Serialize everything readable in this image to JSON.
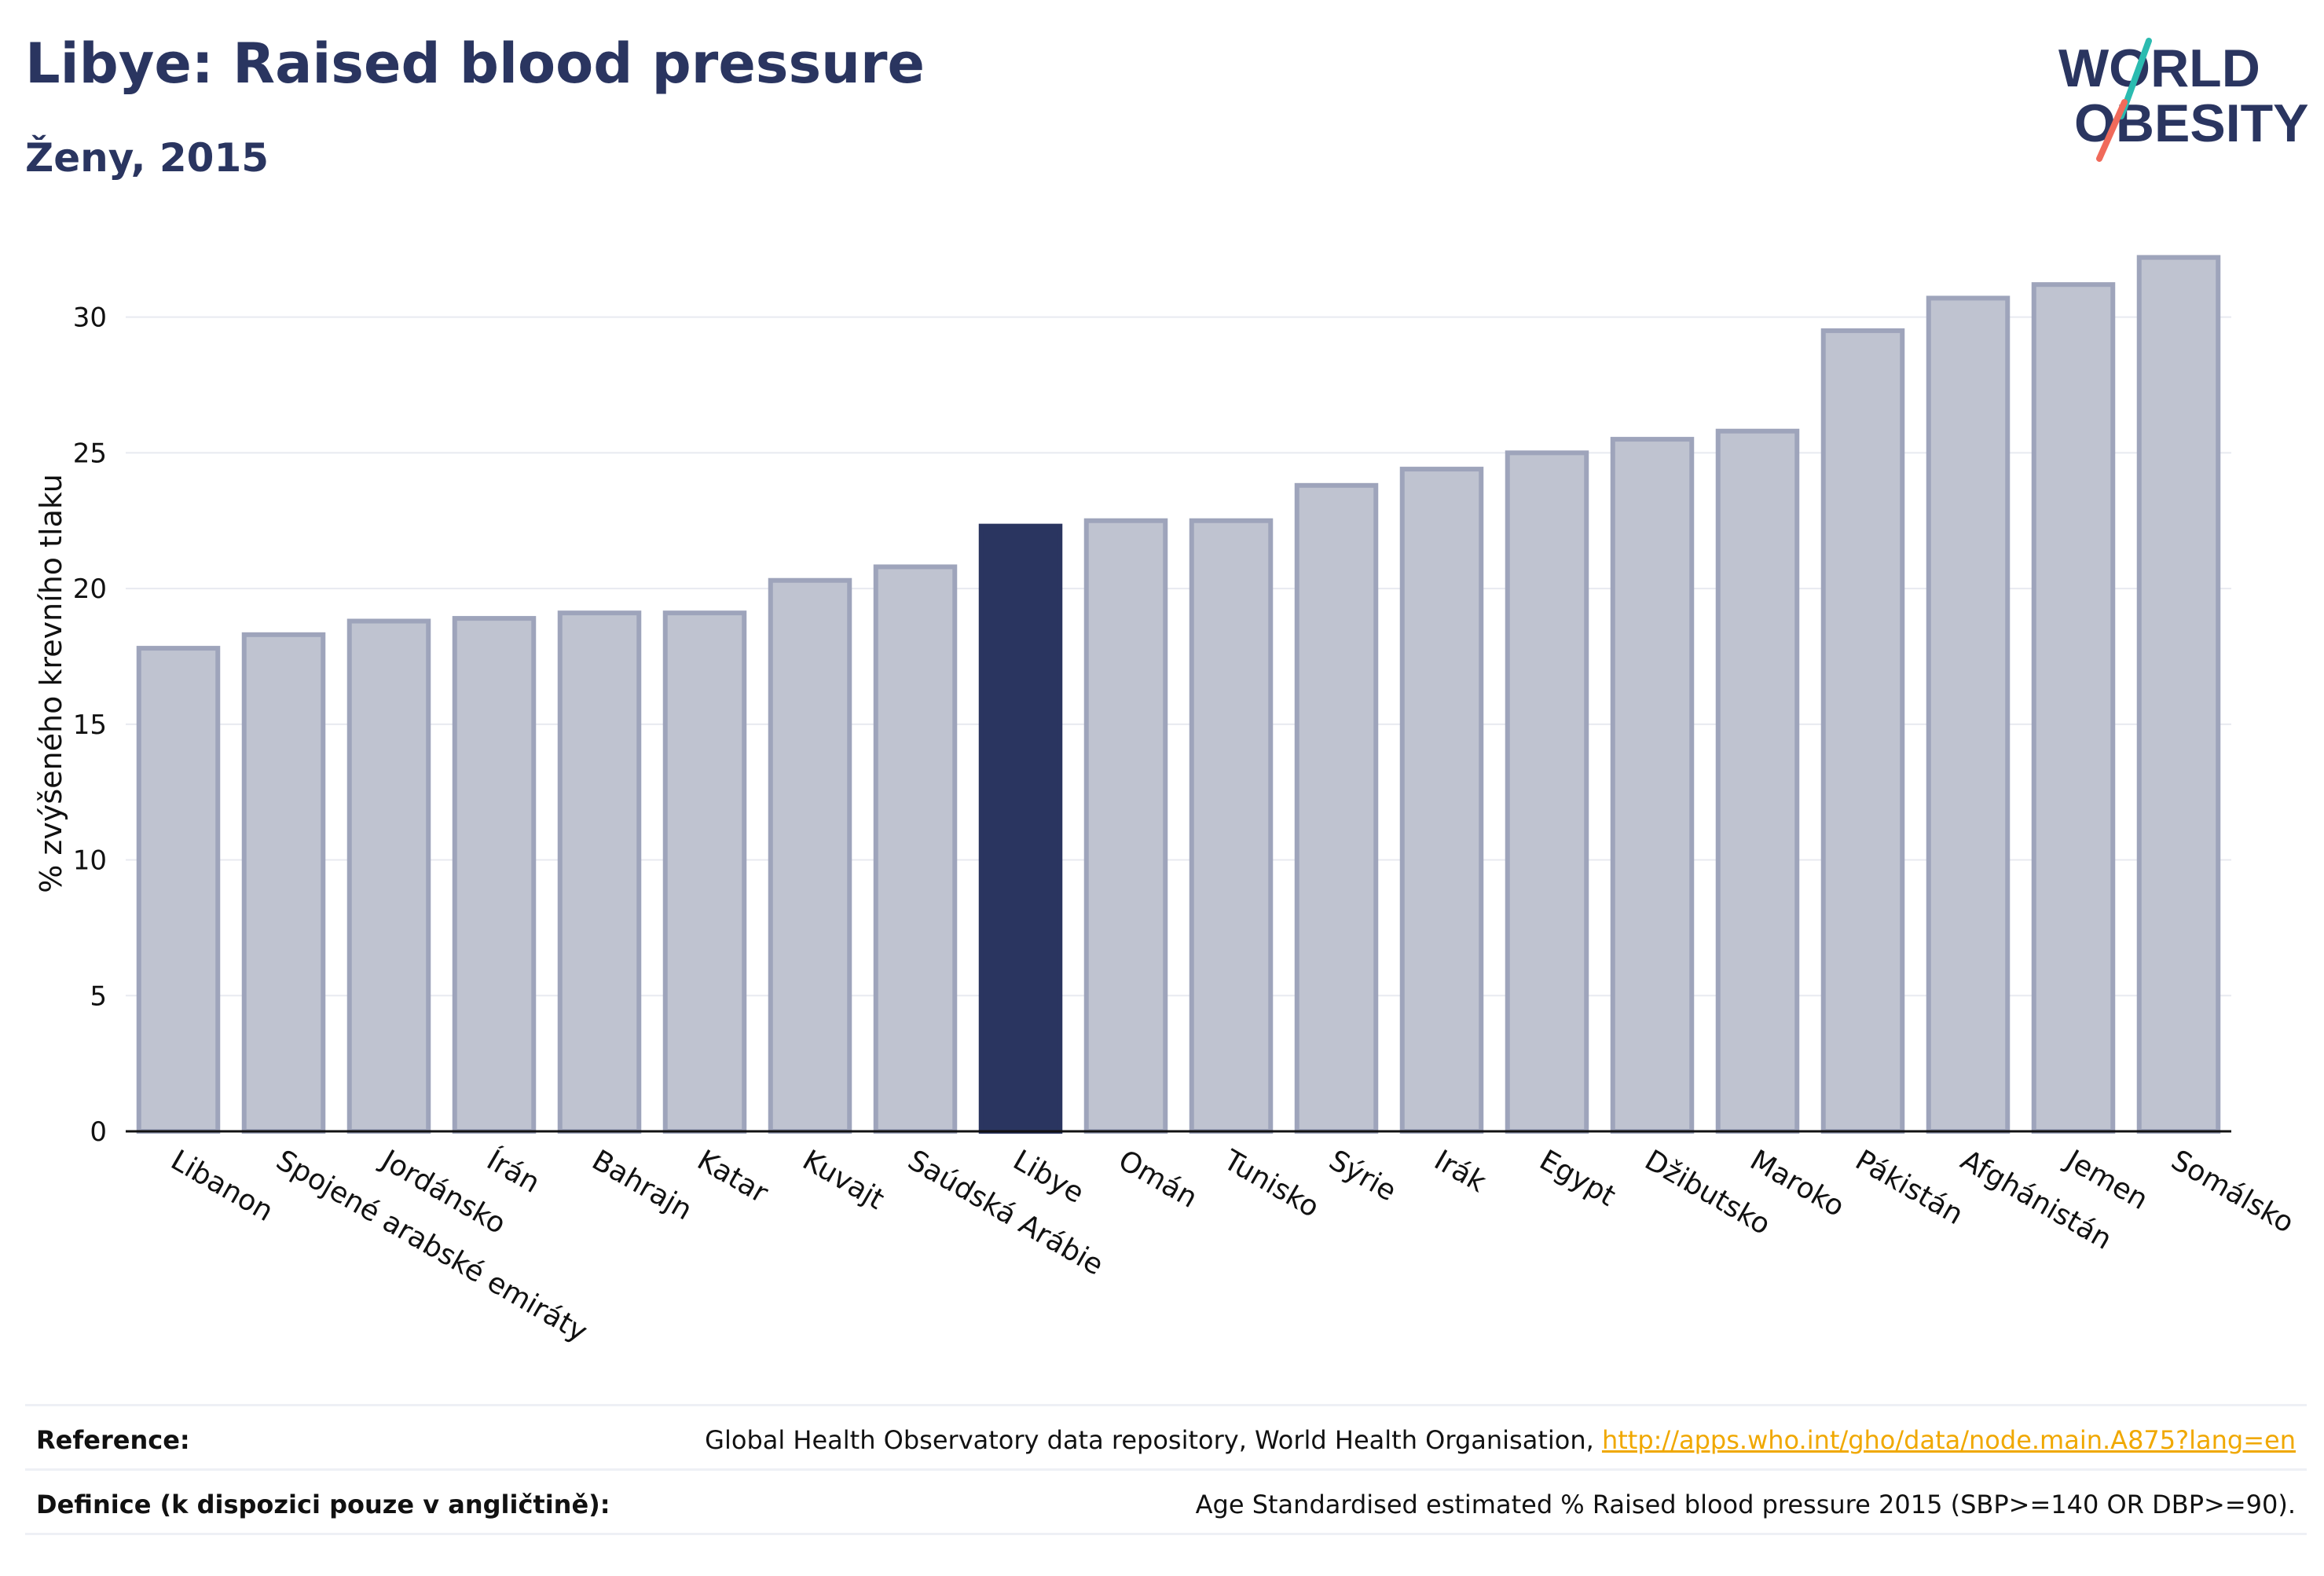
{
  "header": {
    "title": "Libye: Raised blood pressure",
    "subtitle": "Ženy, 2015"
  },
  "logo": {
    "line1": "WORLD",
    "line2": "OBESITY",
    "accent_teal": "#2bbbb0",
    "accent_coral": "#f06a5a"
  },
  "colors": {
    "highlight": "#2a3560",
    "bar": "#bfc3d0",
    "bar_outline": "#9ea4bb",
    "text": "#2a3560"
  },
  "chart_data": {
    "type": "bar",
    "ylabel": "% zvýšeného krevního tlaku",
    "xlabel": "",
    "ylim": [
      0,
      33
    ],
    "yticks": [
      0,
      5,
      10,
      15,
      20,
      25,
      30
    ],
    "grid": true,
    "highlight": "Libye",
    "categories": [
      "Libanon",
      "Spojené arabské emiráty",
      "Jordánsko",
      "Írán",
      "Bahrajn",
      "Katar",
      "Kuvajt",
      "Saúdská Arábie",
      "Libye",
      "Omán",
      "Tunisko",
      "Sýrie",
      "Irák",
      "Egypt",
      "Džibutsko",
      "Maroko",
      "Pákistán",
      "Afghánistán",
      "Jemen",
      "Somálsko"
    ],
    "values": [
      17.8,
      18.3,
      18.8,
      18.9,
      19.1,
      19.1,
      20.3,
      20.8,
      22.3,
      22.5,
      22.5,
      23.8,
      24.4,
      25.0,
      25.5,
      25.8,
      29.5,
      30.7,
      31.2,
      32.2
    ]
  },
  "reference": {
    "label": "Reference:",
    "text": "Global Health Observatory data repository, World Health Organisation, ",
    "link": "http://apps.who.int/gho/data/node.main.A875?lang=en"
  },
  "definition": {
    "label": "Definice (k dispozici pouze v angličtině):",
    "text": "Age Standardised estimated % Raised blood pressure 2015 (SBP>=140 OR DBP>=90)."
  }
}
